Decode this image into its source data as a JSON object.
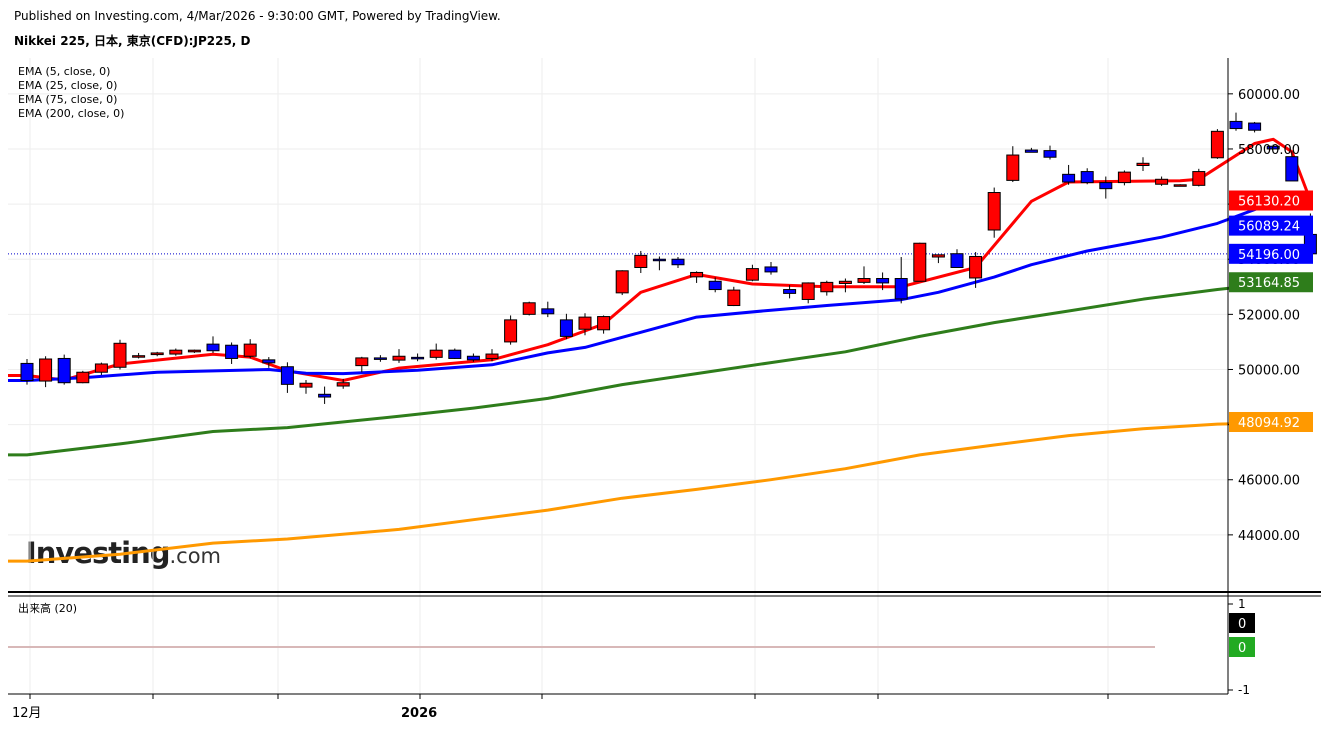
{
  "header": {
    "published": "Published on Investing.com, 4/Mar/2026 - 9:30:00 GMT, Powered by TradingView.",
    "symbol": "Nikkei 225, 日本, 東京(CFD):JP225, D"
  },
  "logo": {
    "brand": "Investing",
    "suffix": ".com"
  },
  "chart_data": {
    "type": "candlestick",
    "title": "Nikkei 225, 日本, 東京(CFD):JP225, D",
    "xaxis_labels": [
      "12月",
      "2026"
    ],
    "ylim": [
      42000,
      61300
    ],
    "yticks": [
      44000,
      46000,
      48000,
      50000,
      52000,
      54000,
      56000,
      58000,
      60000
    ],
    "ytick_labels": [
      "44000.00",
      "46000.00",
      "48000.00",
      "50000.00",
      "52000.00",
      "54000.00",
      "56000.00",
      "58000.00",
      "60000.00"
    ],
    "grid": true,
    "legend": "top-left",
    "legend_entries": [
      "EMA (5, close, 0)",
      "EMA (25, close, 0)",
      "EMA (75, close, 0)",
      "EMA (200, close, 0)"
    ],
    "last_price": 54196.0,
    "price_labels": [
      {
        "text": "56130.20",
        "value": 56130.2,
        "color": "#ff0000"
      },
      {
        "text": "56089.24",
        "value": 56089.24,
        "color": "#0000ff"
      },
      {
        "text": "54196.00",
        "value": 54196.0,
        "color": "#0000ff"
      },
      {
        "text": "53164.85",
        "value": 53164.85,
        "color": "#2e7d1b"
      },
      {
        "text": "48094.92",
        "value": 48094.92,
        "color": "#ff9900"
      }
    ],
    "candles": [
      [
        50220,
        50380,
        49450,
        49600
      ],
      [
        49580,
        50480,
        49360,
        50380
      ],
      [
        50400,
        50540,
        49450,
        49520
      ],
      [
        49520,
        49950,
        49500,
        49900
      ],
      [
        49900,
        50250,
        49800,
        50200
      ],
      [
        50080,
        51080,
        50000,
        50950
      ],
      [
        50460,
        50600,
        50400,
        50500
      ],
      [
        50540,
        50640,
        50480,
        50600
      ],
      [
        50560,
        50760,
        50500,
        50700
      ],
      [
        50640,
        50720,
        50600,
        50700
      ],
      [
        50920,
        51200,
        50600,
        50680
      ],
      [
        50880,
        50980,
        50200,
        50400
      ],
      [
        50480,
        51100,
        50400,
        50920
      ],
      [
        50350,
        50450,
        50060,
        50240
      ],
      [
        50100,
        50260,
        49150,
        49460
      ],
      [
        49360,
        49620,
        49120,
        49500
      ],
      [
        49100,
        49380,
        48750,
        49000
      ],
      [
        49400,
        49660,
        49300,
        49520
      ],
      [
        50140,
        50460,
        49900,
        50420
      ],
      [
        50420,
        50520,
        50280,
        50380
      ],
      [
        50340,
        50740,
        50240,
        50480
      ],
      [
        50440,
        50580,
        50300,
        50400
      ],
      [
        50440,
        50940,
        50360,
        50700
      ],
      [
        50700,
        50760,
        50380,
        50400
      ],
      [
        50480,
        50580,
        50280,
        50350
      ],
      [
        50400,
        50740,
        50300,
        50560
      ],
      [
        51000,
        51960,
        50900,
        51800
      ],
      [
        52000,
        52460,
        51960,
        52420
      ],
      [
        52200,
        52460,
        51900,
        52020
      ],
      [
        51800,
        52020,
        51100,
        51200
      ],
      [
        51460,
        52040,
        51240,
        51900
      ],
      [
        51440,
        51960,
        51300,
        51920
      ],
      [
        52780,
        53600,
        52700,
        53580
      ],
      [
        53700,
        54300,
        53500,
        54140
      ],
      [
        54000,
        54100,
        53600,
        53960
      ],
      [
        54000,
        54080,
        53680,
        53800
      ],
      [
        53360,
        53560,
        53140,
        53520
      ],
      [
        53200,
        53340,
        52800,
        52900
      ],
      [
        52320,
        53000,
        52300,
        52880
      ],
      [
        53240,
        53800,
        53200,
        53660
      ],
      [
        53720,
        53900,
        53440,
        53540
      ],
      [
        52900,
        53060,
        52580,
        52760
      ],
      [
        52540,
        53160,
        52400,
        53140
      ],
      [
        52820,
        53220,
        52680,
        53160
      ],
      [
        53120,
        53300,
        52800,
        53200
      ],
      [
        53160,
        53740,
        53100,
        53300
      ],
      [
        53300,
        53520,
        52880,
        53140
      ],
      [
        53300,
        54080,
        52400,
        52560
      ],
      [
        53200,
        54600,
        53200,
        54580
      ],
      [
        54080,
        54160,
        53860,
        54160
      ],
      [
        54200,
        54360,
        53700,
        53700
      ],
      [
        53320,
        54260,
        52960,
        54100
      ],
      [
        55060,
        56600,
        54780,
        56420
      ],
      [
        56860,
        58100,
        56800,
        57780
      ],
      [
        57960,
        58040,
        57880,
        57880
      ],
      [
        57940,
        58120,
        57620,
        57700
      ],
      [
        57080,
        57420,
        56700,
        56800
      ],
      [
        57180,
        57300,
        56720,
        56780
      ],
      [
        56780,
        57000,
        56200,
        56560
      ],
      [
        56780,
        57220,
        56680,
        57160
      ],
      [
        57400,
        57700,
        57200,
        57480
      ],
      [
        56720,
        57000,
        56660,
        56900
      ],
      [
        56700,
        56720,
        56640,
        56700
      ],
      [
        56680,
        57280,
        56640,
        57180
      ],
      [
        57680,
        58720,
        57640,
        58640
      ],
      [
        59000,
        59320,
        58660,
        58740
      ],
      [
        58940,
        58980,
        58600,
        58680
      ],
      [
        58100,
        58160,
        57980,
        58000
      ],
      [
        57720,
        57920,
        56860,
        56840
      ],
      [
        54900,
        55660,
        54300,
        54196
      ]
    ],
    "series": [
      {
        "name": "EMA (5, close, 0)",
        "color": "#ff0000",
        "points": [
          [
            0,
            49780
          ],
          [
            2,
            49620
          ],
          [
            5,
            50200
          ],
          [
            10,
            50550
          ],
          [
            12,
            50450
          ],
          [
            14,
            49950
          ],
          [
            17,
            49600
          ],
          [
            20,
            50050
          ],
          [
            25,
            50350
          ],
          [
            28,
            50900
          ],
          [
            31,
            51650
          ],
          [
            33,
            52800
          ],
          [
            36,
            53450
          ],
          [
            39,
            53100
          ],
          [
            43,
            53000
          ],
          [
            47,
            53000
          ],
          [
            51,
            53700
          ],
          [
            54,
            56100
          ],
          [
            56,
            56800
          ],
          [
            62,
            56850
          ],
          [
            63,
            56900
          ],
          [
            66,
            58200
          ],
          [
            67,
            58350
          ],
          [
            68,
            57900
          ],
          [
            69,
            56130.2
          ]
        ]
      },
      {
        "name": "EMA (25, close, 0)",
        "color": "#0000ff",
        "points": [
          [
            0,
            49600
          ],
          [
            3,
            49700
          ],
          [
            7,
            49900
          ],
          [
            13,
            50000
          ],
          [
            15,
            49860
          ],
          [
            17,
            49850
          ],
          [
            21,
            49970
          ],
          [
            25,
            50170
          ],
          [
            28,
            50600
          ],
          [
            30,
            50800
          ],
          [
            33,
            51350
          ],
          [
            36,
            51900
          ],
          [
            40,
            52150
          ],
          [
            43,
            52320
          ],
          [
            47,
            52530
          ],
          [
            49,
            52800
          ],
          [
            52,
            53350
          ],
          [
            54,
            53800
          ],
          [
            57,
            54300
          ],
          [
            61,
            54800
          ],
          [
            64,
            55300
          ],
          [
            68,
            56300
          ],
          [
            69,
            56089.24
          ]
        ]
      },
      {
        "name": "EMA (75, close, 0)",
        "color": "#2e7d1b",
        "points": [
          [
            0,
            46900
          ],
          [
            5,
            47300
          ],
          [
            10,
            47750
          ],
          [
            14,
            47890
          ],
          [
            20,
            48300
          ],
          [
            24,
            48600
          ],
          [
            28,
            48950
          ],
          [
            32,
            49450
          ],
          [
            36,
            49850
          ],
          [
            40,
            50250
          ],
          [
            44,
            50640
          ],
          [
            48,
            51200
          ],
          [
            52,
            51700
          ],
          [
            56,
            52120
          ],
          [
            60,
            52550
          ],
          [
            64,
            52900
          ],
          [
            67,
            53120
          ],
          [
            69,
            53164.85
          ]
        ]
      },
      {
        "name": "EMA (200, close, 0)",
        "color": "#ff9900",
        "points": [
          [
            0,
            43050
          ],
          [
            5,
            43300
          ],
          [
            10,
            43700
          ],
          [
            14,
            43850
          ],
          [
            20,
            44200
          ],
          [
            24,
            44550
          ],
          [
            28,
            44900
          ],
          [
            32,
            45330
          ],
          [
            36,
            45650
          ],
          [
            40,
            46000
          ],
          [
            44,
            46400
          ],
          [
            48,
            46900
          ],
          [
            52,
            47260
          ],
          [
            56,
            47600
          ],
          [
            60,
            47850
          ],
          [
            64,
            48020
          ],
          [
            69,
            48094.92
          ]
        ]
      }
    ],
    "volume": {
      "title": "出来高 (20)",
      "yticks": [
        1,
        -1
      ],
      "ytick_labels": [
        "1",
        "-1"
      ],
      "labels": [
        {
          "text": "0",
          "color": "#000000"
        },
        {
          "text": "0",
          "color": "#22aa22"
        }
      ]
    }
  }
}
